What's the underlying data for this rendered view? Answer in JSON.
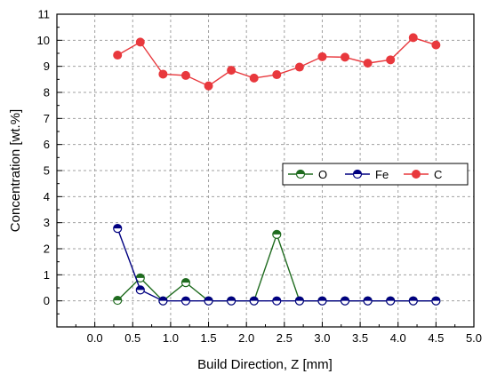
{
  "chart_data": {
    "type": "line",
    "xlabel": "Build Direction, Z [mm]",
    "ylabel": "Concentration [wt.%]",
    "xlim": [
      -0.5,
      5.0
    ],
    "ylim": [
      -1,
      11
    ],
    "xticks": [
      0.0,
      0.5,
      1.0,
      1.5,
      2.0,
      2.5,
      3.0,
      3.5,
      4.0,
      4.5,
      5.0
    ],
    "xtick_labels": [
      "0.0",
      "0.5",
      "1.0",
      "1.5",
      "2.0",
      "2.5",
      "3.0",
      "3.5",
      "4.0",
      "4.5",
      "5.0"
    ],
    "yticks": [
      0,
      1,
      2,
      3,
      4,
      5,
      6,
      7,
      8,
      9,
      10,
      11
    ],
    "ytick_labels": [
      "0",
      "1",
      "2",
      "3",
      "4",
      "5",
      "6",
      "7",
      "8",
      "9",
      "10",
      "11"
    ],
    "grid": true,
    "legend_position": "center-right",
    "x": [
      0.3,
      0.6,
      0.9,
      1.2,
      1.5,
      1.8,
      2.1,
      2.4,
      2.7,
      3.0,
      3.3,
      3.6,
      3.9,
      4.2,
      4.5
    ],
    "series": [
      {
        "name": "O",
        "color": "#1f6b1f",
        "marker": "half-filled-circle",
        "values": [
          0.02,
          0.88,
          0.0,
          0.7,
          0.0,
          0.0,
          0.0,
          2.55,
          0.0,
          0.0,
          0.0,
          0.0,
          0.0,
          0.0,
          0.0
        ]
      },
      {
        "name": "Fe",
        "color": "#000080",
        "marker": "half-filled-circle",
        "values": [
          2.78,
          0.42,
          0.0,
          0.0,
          0.0,
          0.0,
          0.0,
          0.0,
          0.0,
          0.0,
          0.0,
          0.0,
          0.0,
          0.0,
          0.0
        ]
      },
      {
        "name": "C",
        "color": "#e8383d",
        "marker": "filled-circle",
        "values": [
          9.43,
          9.93,
          8.7,
          8.65,
          8.25,
          8.85,
          8.55,
          8.68,
          8.97,
          9.37,
          9.35,
          9.12,
          9.25,
          10.1,
          9.82
        ]
      }
    ]
  }
}
